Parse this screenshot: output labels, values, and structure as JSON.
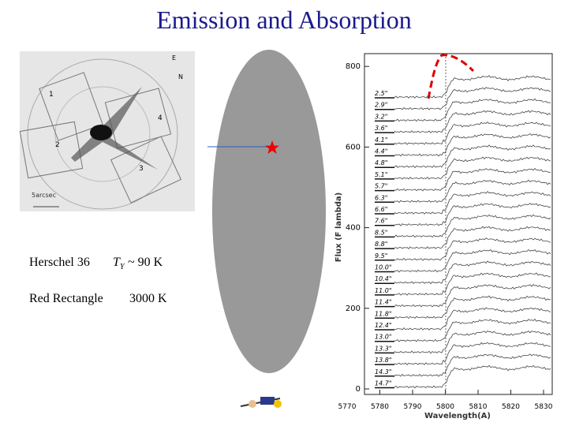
{
  "header": {
    "title": "Emission and Absorption"
  },
  "objects": [
    {
      "name": "Herschel 36",
      "temp_symbol": "T",
      "temp_subscript": "Y",
      "temp_value": "~ 90 K"
    },
    {
      "name": "Red Rectangle",
      "temp_value": "3000 K"
    }
  ],
  "image": {
    "compass_e": "E",
    "compass_n": "N",
    "scale": "5arcsec",
    "panels": [
      "1",
      "2",
      "3",
      "4"
    ]
  },
  "spectrum": {
    "y_label": "Flux (F lambda)",
    "x_label": "Wavelength(A)",
    "yticks": [
      0,
      200,
      400,
      600,
      800
    ],
    "xticks": [
      5770,
      5780,
      5790,
      5800,
      5810,
      5820,
      5830
    ],
    "offsets": [
      "2.5\"",
      "2.9\"",
      "3.2\"",
      "3.6\"",
      "4.1\"",
      "4.4\"",
      "4.8\"",
      "5.1\"",
      "5.7\"",
      "6.3\"",
      "6.6\"",
      "7.6\"",
      "8.5\"",
      "8.8\"",
      "9.5\"",
      "10.0\"",
      "10.4\"",
      "11.0\"",
      "11.4\"",
      "11.8\"",
      "12.4\"",
      "13.0\"",
      "13.3\"",
      "13.8\"",
      "14.3\"",
      "14.7\""
    ]
  }
}
